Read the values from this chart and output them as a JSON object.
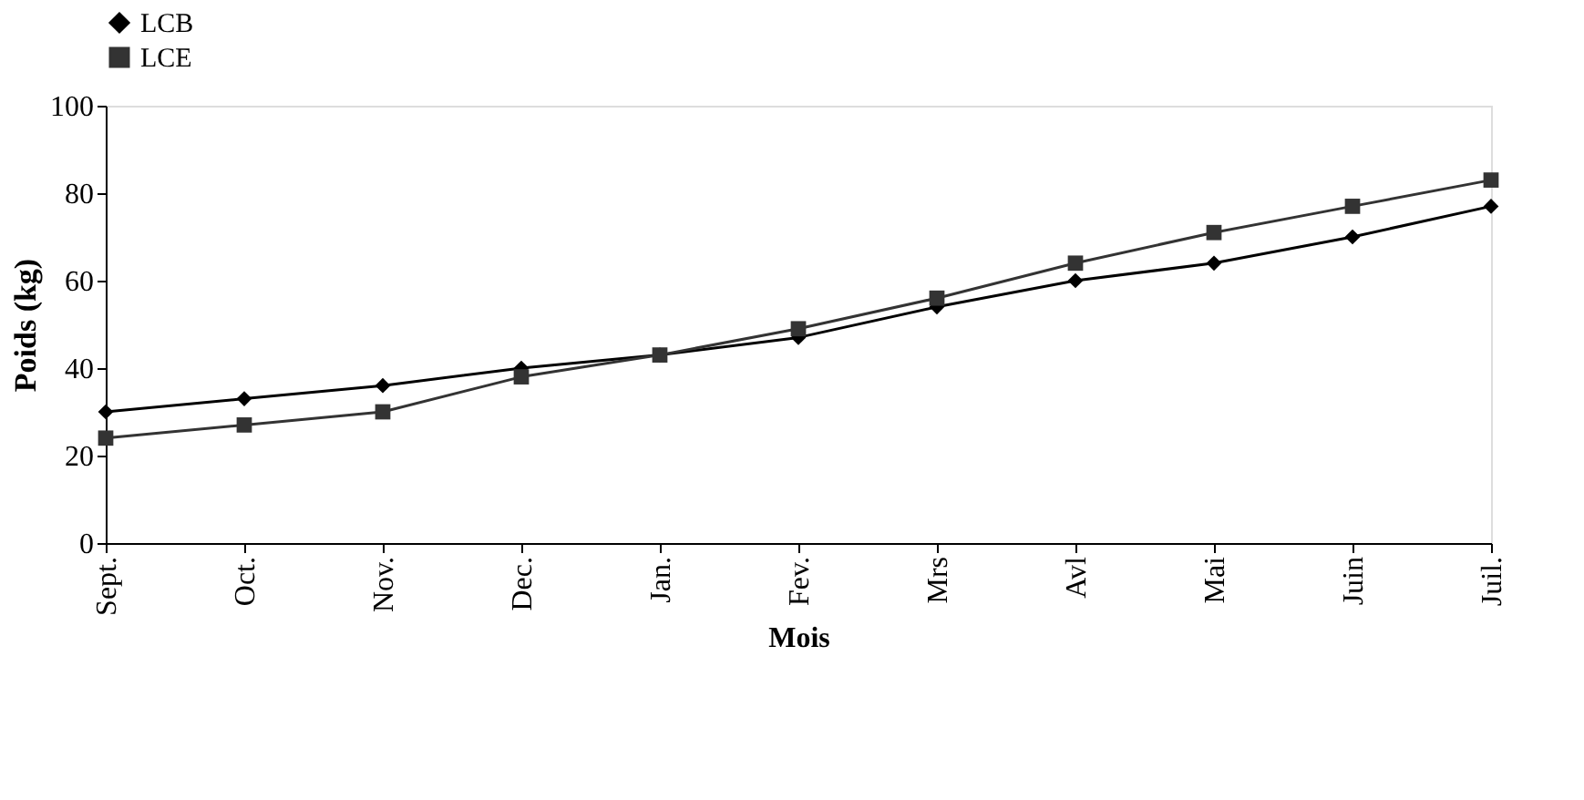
{
  "chart_data": {
    "type": "line",
    "xlabel": "Mois",
    "ylabel": "Poids (kg)",
    "categories": [
      "Sept.",
      "Oct.",
      "Nov.",
      "Dec.",
      "Jan.",
      "Fev.",
      "Mrs",
      "Avl",
      "Mai",
      "Juin",
      "Juil."
    ],
    "series": [
      {
        "name": "LCB",
        "color": "#000000",
        "marker": "diamond",
        "values": [
          30,
          33,
          36,
          40,
          43,
          47,
          54,
          60,
          64,
          70,
          77
        ]
      },
      {
        "name": "LCE",
        "color": "#333333",
        "marker": "square",
        "values": [
          24,
          27,
          30,
          38,
          43,
          49,
          56,
          64,
          71,
          77,
          83
        ]
      }
    ],
    "ylim": [
      0,
      100
    ],
    "yticks": [
      0,
      20,
      40,
      60,
      80,
      100
    ],
    "grid": false,
    "legend": "top",
    "line_style": "solid"
  }
}
